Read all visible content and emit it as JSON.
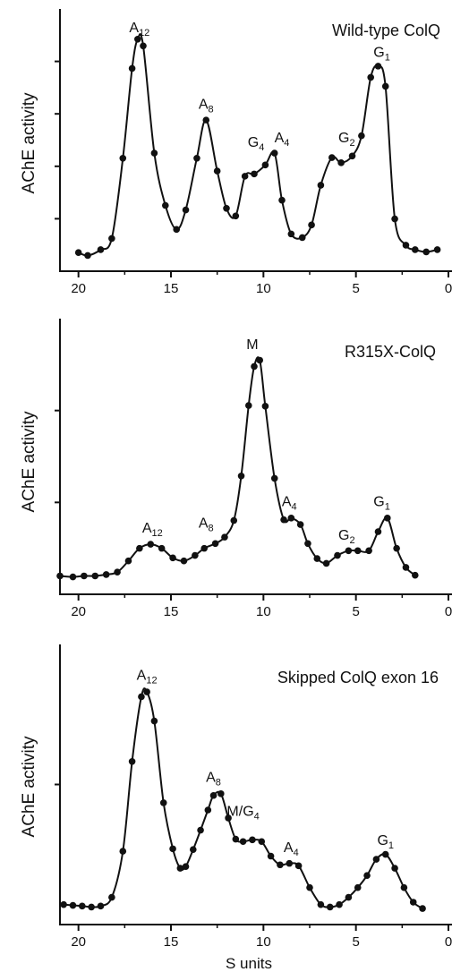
{
  "shared_xlabel": "S units",
  "chart_data": [
    {
      "type": "line",
      "title": "Wild-type ColQ",
      "ylabel": "AChE activity",
      "xlabel": "",
      "xlim": [
        21,
        0
      ],
      "xticks": [
        "20",
        "15",
        "10",
        "5",
        "0"
      ],
      "ylim": [
        0,
        1
      ],
      "yticks_shown_as_marks_only": true,
      "grid": false,
      "series": [
        {
          "x": [
            20.0,
            19.5,
            18.8,
            18.2,
            17.6,
            17.1,
            16.8,
            16.5,
            15.9,
            15.3,
            14.7,
            14.2,
            13.6,
            13.1,
            12.5,
            12.0,
            11.5,
            11.0,
            10.5,
            9.9,
            9.4,
            9.0,
            8.5,
            7.9,
            7.4,
            6.9,
            6.3,
            5.8,
            5.2,
            4.7,
            4.2,
            3.8,
            3.4,
            2.9,
            2.3,
            1.8,
            1.2,
            0.6
          ],
          "y": [
            0.035,
            0.022,
            0.048,
            0.098,
            0.455,
            0.855,
            0.985,
            0.955,
            0.478,
            0.245,
            0.138,
            0.225,
            0.455,
            0.625,
            0.398,
            0.232,
            0.198,
            0.375,
            0.385,
            0.425,
            0.478,
            0.268,
            0.118,
            0.102,
            0.158,
            0.335,
            0.458,
            0.435,
            0.465,
            0.555,
            0.815,
            0.865,
            0.775,
            0.185,
            0.068,
            0.048,
            0.038,
            0.048
          ]
        }
      ],
      "peak_labels": [
        {
          "base": "A",
          "sub": "12",
          "x": 16.7,
          "y": 1.0
        },
        {
          "base": "A",
          "sub": "8",
          "x": 13.1,
          "y": 0.66
        },
        {
          "base": "G",
          "sub": "4",
          "x": 10.4,
          "y": 0.49
        },
        {
          "base": "A",
          "sub": "4",
          "x": 9.0,
          "y": 0.51
        },
        {
          "base": "G",
          "sub": "2",
          "x": 5.5,
          "y": 0.51
        },
        {
          "base": "G",
          "sub": "1",
          "x": 3.6,
          "y": 0.89
        }
      ]
    },
    {
      "type": "line",
      "title": "R315X-ColQ",
      "ylabel": "AChE activity",
      "xlabel": "",
      "xlim": [
        21,
        0
      ],
      "xticks": [
        "20",
        "15",
        "10",
        "5",
        "0"
      ],
      "ylim": [
        0,
        1
      ],
      "yticks_shown_as_marks_only": true,
      "grid": false,
      "series": [
        {
          "x": [
            21.0,
            20.3,
            19.7,
            19.1,
            18.5,
            17.9,
            17.3,
            16.7,
            16.1,
            15.5,
            14.9,
            14.3,
            13.7,
            13.2,
            12.6,
            12.1,
            11.6,
            11.2,
            10.8,
            10.5,
            10.2,
            9.9,
            9.4,
            8.9,
            8.5,
            8.0,
            7.6,
            7.1,
            6.6,
            6.0,
            5.4,
            4.9,
            4.3,
            3.8,
            3.3,
            2.8,
            2.3,
            1.8
          ],
          "y": [
            0.032,
            0.028,
            0.032,
            0.032,
            0.038,
            0.048,
            0.095,
            0.148,
            0.165,
            0.148,
            0.108,
            0.095,
            0.118,
            0.148,
            0.168,
            0.195,
            0.265,
            0.452,
            0.748,
            0.912,
            0.938,
            0.745,
            0.442,
            0.268,
            0.275,
            0.248,
            0.168,
            0.105,
            0.085,
            0.118,
            0.138,
            0.138,
            0.138,
            0.218,
            0.275,
            0.148,
            0.068,
            0.035
          ]
        }
      ],
      "peak_labels": [
        {
          "base": "A",
          "sub": "12",
          "x": 16.0,
          "y": 0.2
        },
        {
          "base": "A",
          "sub": "8",
          "x": 13.1,
          "y": 0.22
        },
        {
          "base": "M",
          "sub": "",
          "x": 10.6,
          "y": 0.97
        },
        {
          "base": "A",
          "sub": "4",
          "x": 8.6,
          "y": 0.31
        },
        {
          "base": "G",
          "sub": "2",
          "x": 5.5,
          "y": 0.17
        },
        {
          "base": "G",
          "sub": "1",
          "x": 3.6,
          "y": 0.31
        }
      ]
    },
    {
      "type": "line",
      "title": "Skipped ColQ exon 16",
      "ylabel": "AChE activity",
      "xlabel": "S units",
      "xlim": [
        21,
        0
      ],
      "xticks": [
        "20",
        "15",
        "10",
        "5",
        "0"
      ],
      "ylim": [
        0,
        1
      ],
      "yticks_shown_as_marks_only": true,
      "grid": false,
      "series": [
        {
          "x": [
            20.8,
            20.3,
            19.8,
            19.3,
            18.8,
            18.2,
            17.6,
            17.1,
            16.6,
            16.3,
            15.9,
            15.4,
            14.9,
            14.5,
            14.2,
            13.8,
            13.4,
            13.0,
            12.7,
            12.3,
            11.9,
            11.5,
            11.1,
            10.6,
            10.1,
            9.6,
            9.1,
            8.6,
            8.1,
            7.5,
            6.9,
            6.4,
            5.9,
            5.4,
            4.9,
            4.4,
            3.9,
            3.4,
            2.9,
            2.4,
            1.9,
            1.4
          ],
          "y": [
            0.038,
            0.035,
            0.032,
            0.028,
            0.032,
            0.068,
            0.258,
            0.628,
            0.895,
            0.915,
            0.795,
            0.458,
            0.268,
            0.188,
            0.195,
            0.265,
            0.345,
            0.428,
            0.488,
            0.495,
            0.395,
            0.308,
            0.298,
            0.305,
            0.298,
            0.238,
            0.202,
            0.208,
            0.198,
            0.108,
            0.038,
            0.028,
            0.038,
            0.068,
            0.108,
            0.158,
            0.225,
            0.245,
            0.188,
            0.108,
            0.048,
            0.022
          ]
        }
      ],
      "peak_labels": [
        {
          "base": "A",
          "sub": "12",
          "x": 16.3,
          "y": 0.95
        },
        {
          "base": "A",
          "sub": "8",
          "x": 12.7,
          "y": 0.53
        },
        {
          "base": "M/G",
          "sub": "4",
          "x": 11.1,
          "y": 0.39
        },
        {
          "base": "A",
          "sub": "4",
          "x": 8.5,
          "y": 0.24
        },
        {
          "base": "G",
          "sub": "1",
          "x": 3.4,
          "y": 0.27
        }
      ]
    }
  ]
}
